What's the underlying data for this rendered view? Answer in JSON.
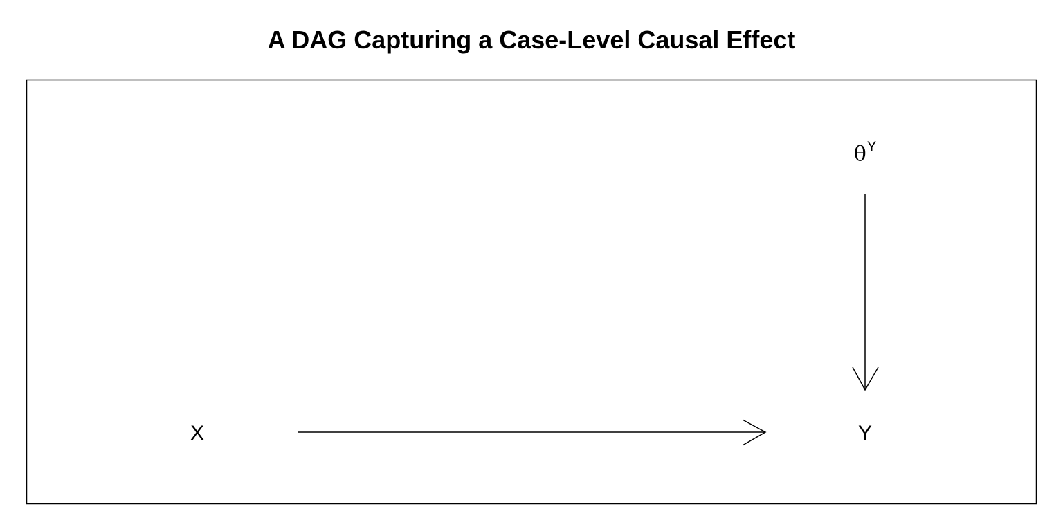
{
  "title": "A DAG Capturing a Case-Level Causal Effect",
  "nodes": {
    "x": {
      "label": "X"
    },
    "y": {
      "label": "Y"
    },
    "theta_y": {
      "symbol": "θ",
      "superscript": "Y"
    }
  },
  "edges": [
    {
      "from": "X",
      "to": "Y"
    },
    {
      "from": "θ^Y",
      "to": "Y"
    }
  ]
}
